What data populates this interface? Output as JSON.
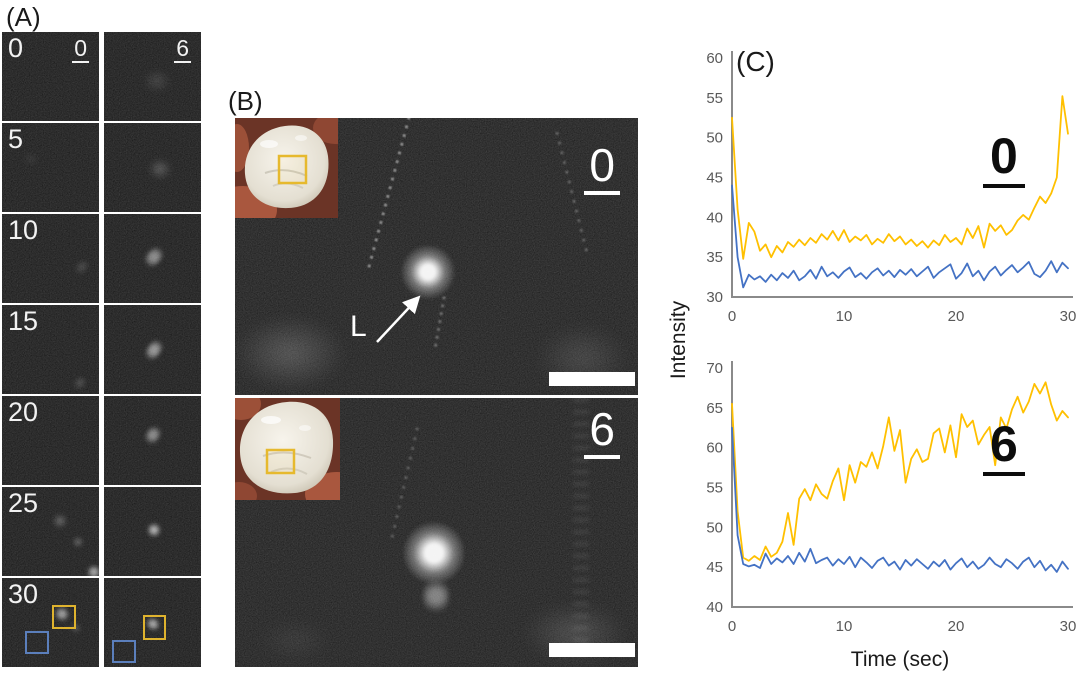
{
  "figure": {
    "panel_a": {
      "label": "(A)",
      "column_headers": [
        "0",
        "6"
      ],
      "row_labels": [
        "0",
        "5",
        "10",
        "15",
        "20",
        "25",
        "30"
      ],
      "roi_colors": {
        "yellow": "#dfb32e",
        "blue": "#5b7fbc"
      }
    },
    "panel_b": {
      "label": "(B)",
      "images": [
        {
          "label": "0",
          "annotation": "L"
        },
        {
          "label": "6"
        }
      ]
    },
    "panel_c": {
      "label": "(C)",
      "ylabel": "Intensity",
      "xlabel": "Time (sec)"
    }
  },
  "chart_data": [
    {
      "type": "line",
      "title": "0",
      "xlabel": "",
      "ylabel": "Intensity",
      "xlim": [
        0,
        30
      ],
      "ylim": [
        30,
        60
      ],
      "xticks": [
        0,
        10,
        20,
        30
      ],
      "yticks": [
        30,
        35,
        40,
        45,
        50,
        55,
        60
      ],
      "grid": false,
      "legend": "none",
      "x_step": 0.5,
      "series": [
        {
          "name": "yellow",
          "color": "#FFC000",
          "values": [
            52.5,
            41,
            34.8,
            39.3,
            38.2,
            35.8,
            36.6,
            35,
            36.4,
            35.6,
            36.9,
            36.3,
            37.2,
            36.5,
            37.4,
            36.8,
            37.9,
            37.2,
            38.3,
            37.1,
            38.4,
            36.9,
            37.6,
            37.1,
            37.8,
            36.6,
            37.3,
            36.8,
            37.9,
            37.0,
            37.6,
            36.6,
            37.2,
            36.4,
            37.0,
            36.2,
            37.1,
            36.5,
            37.8,
            36.9,
            37.4,
            36.6,
            38.6,
            37.4,
            38.9,
            36.2,
            39.2,
            38.3,
            39.0,
            37.8,
            38.4,
            39.6,
            40.3,
            39.7,
            41.2,
            42.6,
            41.8,
            43.0,
            45.0,
            55.2,
            50.5
          ]
        },
        {
          "name": "blue",
          "color": "#4472C4",
          "values": [
            44,
            35,
            31.2,
            32.8,
            32.2,
            32.6,
            31.9,
            32.8,
            32.1,
            33.0,
            32.4,
            33.3,
            32.1,
            32.6,
            33.4,
            32.3,
            33.8,
            32.6,
            33.1,
            32.4,
            33.2,
            33.7,
            32.5,
            33.0,
            32.3,
            33.1,
            33.6,
            32.7,
            33.3,
            32.5,
            33.4,
            32.8,
            33.5,
            32.6,
            33.2,
            33.8,
            32.4,
            33.1,
            33.6,
            34.1,
            32.3,
            33.0,
            34.2,
            32.6,
            33.3,
            32.1,
            33.2,
            33.8,
            32.7,
            33.4,
            34.0,
            33.1,
            33.7,
            34.4,
            32.9,
            32.5,
            33.3,
            34.5,
            33.1,
            34.3,
            33.6
          ]
        }
      ]
    },
    {
      "type": "line",
      "title": "6",
      "xlabel": "Time (sec)",
      "ylabel": "Intensity",
      "xlim": [
        0,
        30
      ],
      "ylim": [
        40,
        70
      ],
      "xticks": [
        0,
        10,
        20,
        30
      ],
      "yticks": [
        40,
        45,
        50,
        55,
        60,
        65,
        70
      ],
      "grid": false,
      "legend": "none",
      "x_step": 0.5,
      "series": [
        {
          "name": "yellow",
          "color": "#FFC000",
          "values": [
            65.5,
            52,
            46.2,
            45.8,
            46.4,
            45.9,
            47.6,
            46.3,
            46.8,
            48.2,
            51.8,
            47.8,
            53.6,
            54.8,
            53.4,
            55.4,
            54.2,
            53.6,
            55.8,
            57.4,
            53.4,
            57.8,
            55.6,
            58.2,
            57.6,
            59.4,
            57.4,
            60.2,
            63.8,
            59.6,
            62.2,
            55.6,
            58.6,
            59.8,
            58.2,
            58.6,
            61.8,
            62.4,
            59.4,
            62.8,
            58.8,
            64.2,
            62.6,
            63.4,
            60.4,
            61.6,
            62.6,
            57.8,
            63.8,
            62.4,
            64.8,
            66.4,
            64.4,
            65.8,
            68.0,
            66.8,
            68.2,
            65.4,
            63.4,
            64.6,
            63.8
          ]
        },
        {
          "name": "blue",
          "color": "#4472C4",
          "values": [
            62.5,
            49,
            45.4,
            45.1,
            45.3,
            44.9,
            46.7,
            45.4,
            46.1,
            45.6,
            46.4,
            45.4,
            46.8,
            45.7,
            47.3,
            45.5,
            45.9,
            46.2,
            45.2,
            46.0,
            45.4,
            46.3,
            45.0,
            46.2,
            45.6,
            44.9,
            45.8,
            46.2,
            45.2,
            45.7,
            44.7,
            45.9,
            45.2,
            46.0,
            45.4,
            44.8,
            45.7,
            45.1,
            45.9,
            44.7,
            45.5,
            46.1,
            45.0,
            45.7,
            44.8,
            45.3,
            46.2,
            45.4,
            45.0,
            46.0,
            45.5,
            44.8,
            45.7,
            46.2,
            45.0,
            45.8,
            44.6,
            45.3,
            44.4,
            45.7,
            44.8
          ]
        }
      ]
    }
  ]
}
